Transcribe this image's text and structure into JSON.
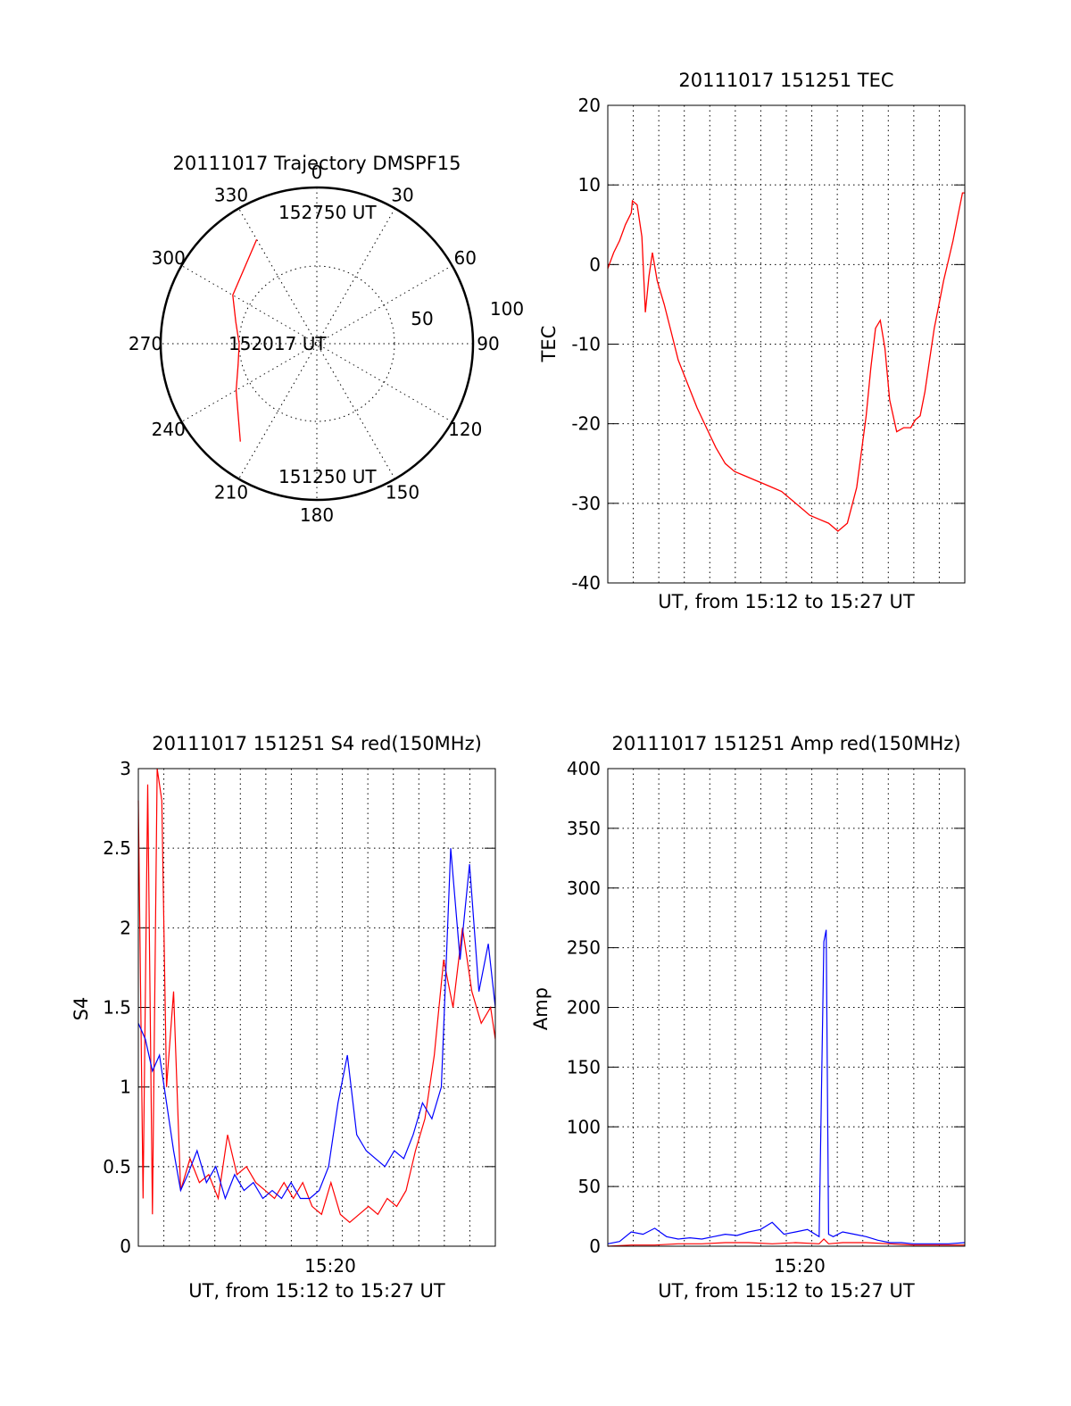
{
  "colors": {
    "red": "#ff0000",
    "blue": "#0000ff",
    "axis": "#000000"
  },
  "polar": {
    "title": "20111017 Trajectory DMSPF15",
    "angle_labels": [
      "0",
      "30",
      "60",
      "90",
      "120",
      "150",
      "180",
      "210",
      "240",
      "270",
      "300",
      "330"
    ],
    "radius_labels": [
      "50",
      "100"
    ],
    "point_labels": [
      "152750 UT",
      "152017 UT",
      "151250 UT"
    ]
  },
  "chart_data": [
    {
      "type": "line",
      "title": "20111017 151251 TEC",
      "xlabel": "UT, from 15:12 to 15:27 UT",
      "ylabel": "TEC",
      "ylim": [
        -40,
        20
      ],
      "yticks": [
        "20",
        "10",
        "0",
        "-10",
        "-20",
        "-30",
        "-40"
      ],
      "xlim": [
        0,
        15.2
      ],
      "series": [
        {
          "color": "#ff0000",
          "x": [
            0.0,
            0.25,
            0.5,
            0.75,
            1.0,
            1.05,
            1.25,
            1.45,
            1.6,
            1.75,
            1.9,
            2.1,
            2.4,
            2.7,
            3.0,
            3.4,
            3.8,
            4.2,
            4.6,
            5.0,
            5.4,
            5.8,
            6.2,
            6.6,
            7.0,
            7.4,
            7.8,
            8.2,
            8.6,
            9.0,
            9.4,
            9.8,
            10.2,
            10.6,
            11.0,
            11.2,
            11.4,
            11.6,
            11.8,
            12.0,
            12.3,
            12.6,
            12.9,
            13.1,
            13.3,
            13.5,
            13.7,
            13.9,
            14.1,
            14.3,
            14.5,
            14.7,
            14.9,
            15.1,
            15.2
          ],
          "y": [
            -0.5,
            1.5,
            3.0,
            5.0,
            6.5,
            8.0,
            7.5,
            3.5,
            -6.0,
            -1.5,
            1.5,
            -2.0,
            -5.0,
            -8.5,
            -12.0,
            -15.0,
            -18.0,
            -20.5,
            -23.0,
            -25.0,
            -26.0,
            -26.5,
            -27.0,
            -27.5,
            -28.0,
            -28.5,
            -29.5,
            -30.5,
            -31.5,
            -32.0,
            -32.5,
            -33.5,
            -32.5,
            -28.0,
            -19.0,
            -13.0,
            -8.0,
            -7.0,
            -10.5,
            -17.0,
            -21.0,
            -20.5,
            -20.5,
            -19.5,
            -19.0,
            -16.0,
            -12.0,
            -8.0,
            -5.0,
            -2.0,
            0.5,
            3.0,
            6.0,
            9.0,
            9.0
          ]
        }
      ]
    },
    {
      "type": "line",
      "title": "20111017 151251 S4 red(150MHz)",
      "xlabel": "UT, from 15:12 to 15:27 UT",
      "ylabel": "S4",
      "ylim": [
        0,
        3
      ],
      "yticks": [
        "3",
        "2.5",
        "2",
        "1.5",
        "1",
        "0.5",
        "0"
      ],
      "xtick_label": "15:20",
      "xlim": [
        0,
        15.2
      ],
      "series": [
        {
          "color": "#ff0000",
          "x": [
            0.0,
            0.2,
            0.4,
            0.6,
            0.8,
            1.0,
            1.2,
            1.5,
            1.8,
            2.2,
            2.6,
            3.0,
            3.4,
            3.8,
            4.2,
            4.6,
            5.0,
            5.4,
            5.8,
            6.2,
            6.6,
            7.0,
            7.4,
            7.8,
            8.2,
            8.6,
            9.0,
            9.4,
            9.8,
            10.2,
            10.6,
            11.0,
            11.4,
            11.8,
            12.2,
            12.6,
            13.0,
            13.4,
            13.8,
            14.2,
            14.6,
            15.0,
            15.2
          ],
          "y": [
            2.8,
            0.3,
            2.9,
            0.2,
            3.0,
            2.8,
            1.0,
            1.6,
            0.35,
            0.55,
            0.4,
            0.45,
            0.3,
            0.7,
            0.45,
            0.5,
            0.4,
            0.35,
            0.3,
            0.4,
            0.3,
            0.4,
            0.25,
            0.2,
            0.4,
            0.2,
            0.15,
            0.2,
            0.25,
            0.2,
            0.3,
            0.25,
            0.35,
            0.6,
            0.8,
            1.2,
            1.8,
            1.5,
            2.0,
            1.6,
            1.4,
            1.5,
            1.3
          ]
        },
        {
          "color": "#0000ff",
          "x": [
            0.0,
            0.3,
            0.6,
            0.9,
            1.2,
            1.5,
            1.8,
            2.1,
            2.5,
            2.9,
            3.3,
            3.7,
            4.1,
            4.5,
            4.9,
            5.3,
            5.7,
            6.1,
            6.5,
            6.9,
            7.3,
            7.7,
            8.1,
            8.5,
            8.9,
            9.3,
            9.7,
            10.1,
            10.5,
            10.9,
            11.3,
            11.7,
            12.1,
            12.5,
            12.9,
            13.3,
            13.7,
            14.1,
            14.5,
            14.9,
            15.2
          ],
          "y": [
            1.4,
            1.3,
            1.1,
            1.2,
            0.9,
            0.6,
            0.35,
            0.45,
            0.6,
            0.4,
            0.5,
            0.3,
            0.45,
            0.35,
            0.4,
            0.3,
            0.35,
            0.3,
            0.4,
            0.3,
            0.3,
            0.35,
            0.5,
            0.9,
            1.2,
            0.7,
            0.6,
            0.55,
            0.5,
            0.6,
            0.55,
            0.7,
            0.9,
            0.8,
            1.0,
            2.5,
            1.8,
            2.4,
            1.6,
            1.9,
            1.5
          ]
        }
      ]
    },
    {
      "type": "line",
      "title": "20111017 151251 Amp red(150MHz)",
      "xlabel": "UT, from 15:12 to 15:27 UT",
      "ylabel": "Amp",
      "ylim": [
        0,
        400
      ],
      "yticks": [
        "400",
        "350",
        "300",
        "250",
        "200",
        "150",
        "100",
        "50",
        "0"
      ],
      "xtick_label": "15:20",
      "xlim": [
        0,
        15.2
      ],
      "series": [
        {
          "color": "#ff0000",
          "x": [
            0,
            1,
            2,
            3,
            4,
            5,
            6,
            7,
            8,
            9,
            9.2,
            9.4,
            10,
            11,
            12,
            13,
            14,
            15.2
          ],
          "y": [
            0,
            1,
            1,
            2,
            2,
            3,
            3,
            2,
            3,
            2,
            6,
            2,
            3,
            3,
            2,
            1,
            1,
            1
          ]
        },
        {
          "color": "#0000ff",
          "x": [
            0,
            0.5,
            1.0,
            1.5,
            2.0,
            2.5,
            3.0,
            3.5,
            4.0,
            4.5,
            5.0,
            5.5,
            6.0,
            6.5,
            7.0,
            7.5,
            8.0,
            8.5,
            9.0,
            9.2,
            9.3,
            9.4,
            9.6,
            10.0,
            10.5,
            11.0,
            11.5,
            12.0,
            12.5,
            13.0,
            13.5,
            14.0,
            14.5,
            15.2
          ],
          "y": [
            2,
            4,
            12,
            10,
            15,
            8,
            6,
            7,
            6,
            8,
            10,
            9,
            12,
            14,
            20,
            10,
            12,
            14,
            8,
            255,
            265,
            10,
            8,
            12,
            10,
            8,
            5,
            3,
            3,
            2,
            2,
            2,
            2,
            3
          ]
        }
      ]
    }
  ]
}
